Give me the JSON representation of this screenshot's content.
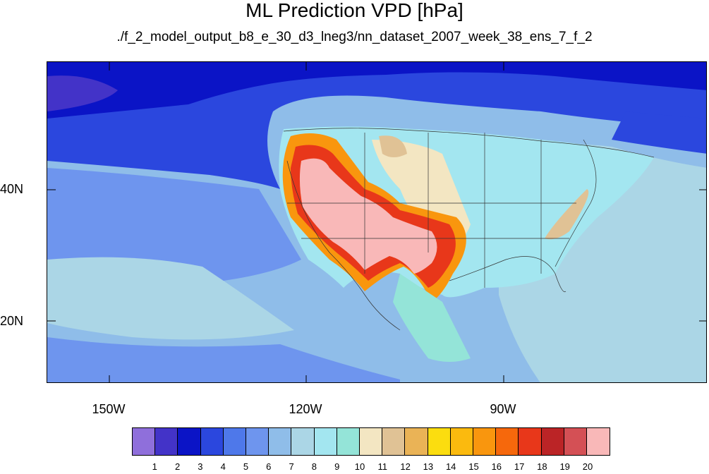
{
  "title": "ML Prediction VPD [hPa]",
  "subtitle": "./f_2_model_output_b8_e_30_d3_lneg3/nn_dataset_2007_week_38_ens_7_f_2",
  "lat_labels": [
    "40N",
    "20N"
  ],
  "lon_labels": [
    "150W",
    "120W",
    "90W"
  ],
  "colorbar": {
    "labels": [
      "1",
      "2",
      "3",
      "4",
      "5",
      "6",
      "7",
      "8",
      "9",
      "10",
      "11",
      "12",
      "13",
      "14",
      "15",
      "16",
      "17",
      "18",
      "19",
      "20"
    ],
    "colors": [
      "#8f6fdb",
      "#4333c8",
      "#0b14c6",
      "#2b47de",
      "#4e78ea",
      "#6e95ee",
      "#8fbde9",
      "#abd6e6",
      "#a3e6f0",
      "#94e4d8",
      "#f3e6c2",
      "#e0c295",
      "#eab356",
      "#fbdd0f",
      "#fbba0e",
      "#f9960e",
      "#f6680c",
      "#e8371a",
      "#bb2426",
      "#d45055",
      "#f9b8b8"
    ]
  }
}
